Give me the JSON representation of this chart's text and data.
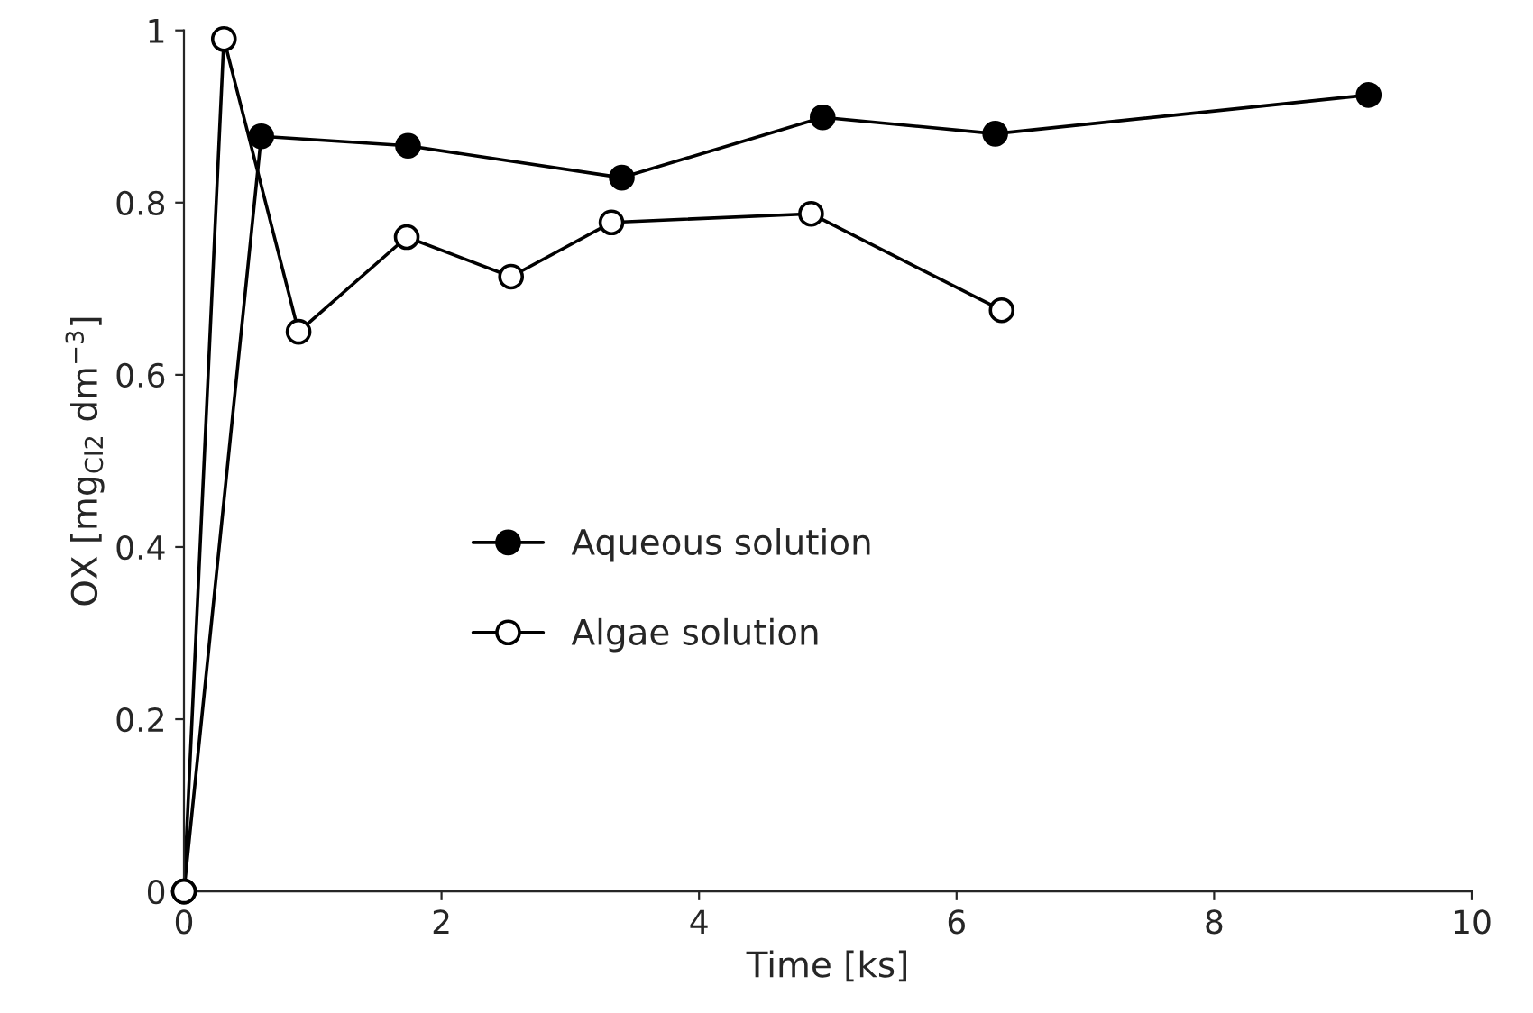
{
  "chart_data": {
    "type": "line",
    "xlabel": "Time [ks]",
    "ylabel": "OX [mg$_{Cl2}$ dm$^{−3}$]",
    "xlim": [
      0,
      10
    ],
    "xticks": [
      0,
      2,
      4,
      6,
      8,
      10
    ],
    "ylim": [
      0,
      1
    ],
    "yticks": [
      0,
      0.2,
      0.4,
      0.6,
      0.8,
      1
    ],
    "grid": false,
    "legend": "center left",
    "marker": "circle",
    "line_style": "solid",
    "series": [
      {
        "name": "Aqueous solution",
        "color": "#000000",
        "x": [
          0,
          0.6,
          1.74,
          3.4,
          4.96,
          6.3,
          9.2
        ],
        "values": [
          0,
          0.877,
          0.866,
          0.829,
          0.899,
          0.88,
          0.925
        ]
      },
      {
        "name": "Algae solution",
        "color": "#ffffff",
        "x": [
          0,
          0.31,
          0.89,
          1.73,
          2.54,
          3.32,
          4.87,
          6.35
        ],
        "values": [
          0,
          0.99,
          0.65,
          0.76,
          0.714,
          0.777,
          0.787,
          0.675
        ]
      }
    ]
  }
}
